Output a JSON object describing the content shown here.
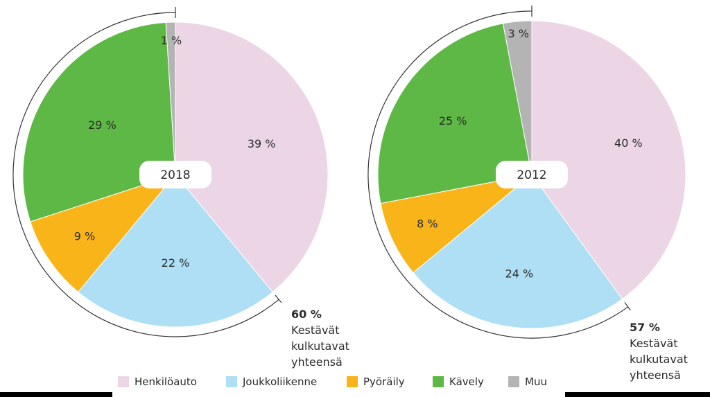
{
  "chart_data": [
    {
      "type": "pie",
      "center_label": "2018",
      "categories": [
        "Henkilöauto",
        "Joukkoliikenne",
        "Pyöräily",
        "Kävely",
        "Muu"
      ],
      "values": [
        39,
        22,
        9,
        29,
        1
      ],
      "value_labels": [
        "39 %",
        "22 %",
        "9 %",
        "29 %",
        "1 %"
      ],
      "annotation": {
        "value": "60 %",
        "lines": [
          "Kestävät",
          "kulkutavat",
          "yhteensä"
        ]
      }
    },
    {
      "type": "pie",
      "center_label": "2012",
      "categories": [
        "Henkilöauto",
        "Joukkoliikenne",
        "Pyöräily",
        "Kävely",
        "Muu"
      ],
      "values": [
        40,
        24,
        8,
        25,
        3
      ],
      "value_labels": [
        "40 %",
        "24 %",
        "8 %",
        "25 %",
        "3 %"
      ],
      "annotation": {
        "value": "57 %",
        "lines": [
          "Kestävät",
          "kulkutavat",
          "yhteensä"
        ]
      }
    }
  ],
  "legend": [
    {
      "label": "Henkilöauto",
      "color": "#ecd6e6"
    },
    {
      "label": "Joukkoliikenne",
      "color": "#afdff5"
    },
    {
      "label": "Pyöräily",
      "color": "#f9b41a"
    },
    {
      "label": "Kävely",
      "color": "#5eb845"
    },
    {
      "label": "Muu",
      "color": "#b4b4b4"
    }
  ]
}
